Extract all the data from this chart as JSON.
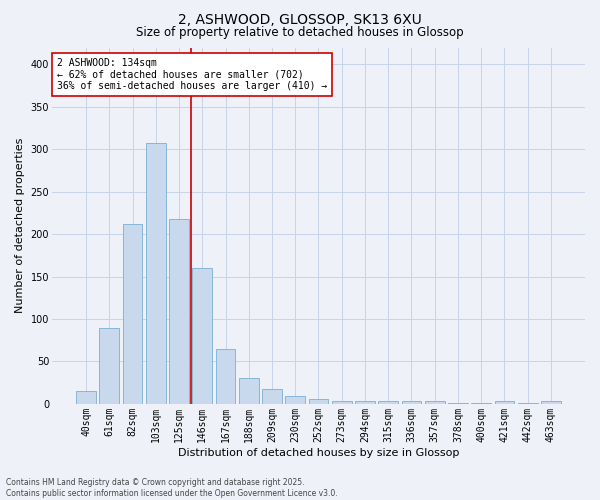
{
  "title_line1": "2, ASHWOOD, GLOSSOP, SK13 6XU",
  "title_line2": "Size of property relative to detached houses in Glossop",
  "xlabel": "Distribution of detached houses by size in Glossop",
  "ylabel": "Number of detached properties",
  "bar_labels": [
    "40sqm",
    "61sqm",
    "82sqm",
    "103sqm",
    "125sqm",
    "146sqm",
    "167sqm",
    "188sqm",
    "209sqm",
    "230sqm",
    "252sqm",
    "273sqm",
    "294sqm",
    "315sqm",
    "336sqm",
    "357sqm",
    "378sqm",
    "400sqm",
    "421sqm",
    "442sqm",
    "463sqm"
  ],
  "bar_values": [
    15,
    90,
    212,
    307,
    218,
    160,
    65,
    31,
    18,
    9,
    6,
    3,
    3,
    3,
    3,
    3,
    1,
    1,
    3,
    1,
    3
  ],
  "bar_color": "#c9d9ed",
  "bar_edge_color": "#7aafd4",
  "grid_color": "#c8d4e8",
  "vline_x": 4.5,
  "vline_color": "#cc0000",
  "annotation_text": "2 ASHWOOD: 134sqm\n← 62% of detached houses are smaller (702)\n36% of semi-detached houses are larger (410) →",
  "annotation_box_color": "#ffffff",
  "annotation_box_edge": "#cc0000",
  "footer_line1": "Contains HM Land Registry data © Crown copyright and database right 2025.",
  "footer_line2": "Contains public sector information licensed under the Open Government Licence v3.0.",
  "ylim": [
    0,
    420
  ],
  "yticks": [
    0,
    50,
    100,
    150,
    200,
    250,
    300,
    350,
    400
  ],
  "background_color": "#eef2f8",
  "title1_fontsize": 10,
  "title2_fontsize": 8.5,
  "ylabel_fontsize": 8,
  "xlabel_fontsize": 8,
  "tick_fontsize": 7,
  "annot_fontsize": 7,
  "footer_fontsize": 5.5
}
